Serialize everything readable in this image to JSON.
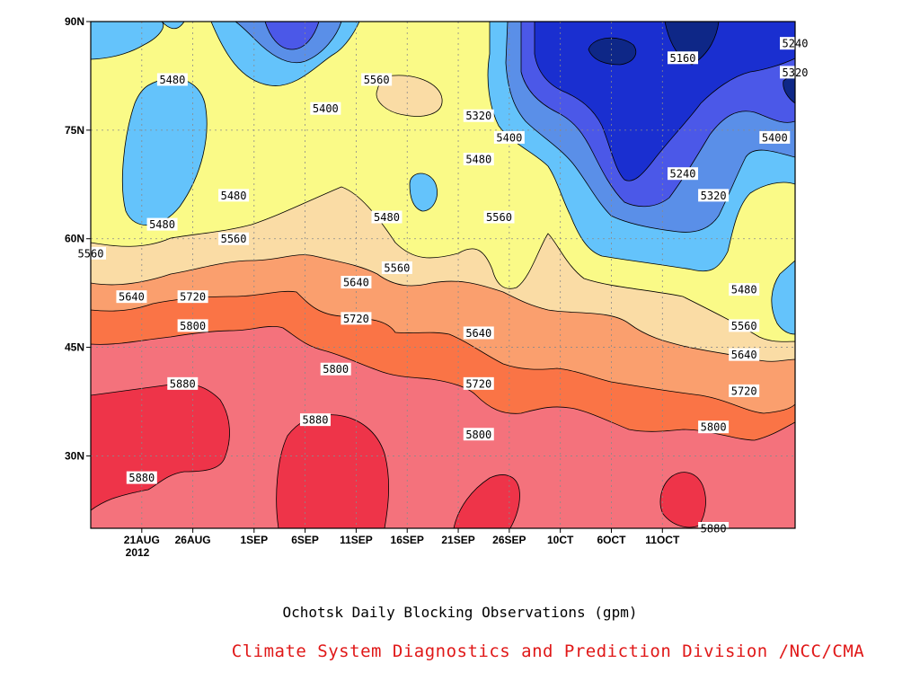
{
  "chart_data": {
    "type": "heatmap",
    "subtype": "filled-contour",
    "title": "Ochotsk Daily Blocking Observations (gpm)",
    "variable_unit": "gpm",
    "y_axis": {
      "range": [
        "20N",
        "90N"
      ],
      "tick_labels": [
        "90N",
        "75N",
        "60N",
        "45N",
        "30N"
      ],
      "tick_values": [
        90,
        75,
        60,
        45,
        30
      ]
    },
    "x_axis": {
      "tick_labels": [
        "21AUG",
        "26AUG",
        "1SEP",
        "6SEP",
        "11SEP",
        "16SEP",
        "21SEP",
        "26SEP",
        "1OCT",
        "6OCT",
        "11OCT"
      ],
      "displayed_tick_labels": [
        "21AUG",
        "26AUG",
        "1SEP",
        "6SEP",
        "11SEP",
        "16SEP",
        "21SEP",
        "26SEP",
        "10CT",
        "6OCT",
        "11OCT"
      ],
      "year_label": "2012"
    },
    "grid": true,
    "contour_levels": [
      5160,
      5240,
      5320,
      5400,
      5480,
      5560,
      5640,
      5720,
      5800,
      5880
    ],
    "fill_colors": {
      "below_5160": "#0e2787",
      "5160_5240": "#1a2fd0",
      "5240_5320": "#4b58e8",
      "5320_5400": "#5a8fe8",
      "5400_5480": "#64c3fb",
      "5480_5560": "#fafa87",
      "5560_5640": "#fadca5",
      "5640_5720": "#fa9f6e",
      "5720_5800": "#fa7446",
      "5800_5880": "#f4727c",
      "above_5880": "#ee3449"
    },
    "contour_labels": [
      {
        "text": "5480",
        "date": "24AUG",
        "lat": 82
      },
      {
        "text": "5560",
        "date": "13SEP",
        "lat": 82
      },
      {
        "text": "5400",
        "date": "8SEP",
        "lat": 78
      },
      {
        "text": "5160",
        "date": "13OCT",
        "lat": 85
      },
      {
        "text": "5240",
        "date": "24OCT",
        "lat": 87
      },
      {
        "text": "5320",
        "date": "24OCT",
        "lat": 83
      },
      {
        "text": "5320",
        "date": "23SEP",
        "lat": 77
      },
      {
        "text": "5400",
        "date": "26SEP",
        "lat": 74
      },
      {
        "text": "5400",
        "date": "22OCT",
        "lat": 74
      },
      {
        "text": "5480",
        "date": "23SEP",
        "lat": 71
      },
      {
        "text": "5240",
        "date": "13OCT",
        "lat": 69
      },
      {
        "text": "5480",
        "date": "30AUG",
        "lat": 66
      },
      {
        "text": "5480",
        "date": "14SEP",
        "lat": 63
      },
      {
        "text": "5320",
        "date": "16OCT",
        "lat": 66
      },
      {
        "text": "5480",
        "date": "23AUG",
        "lat": 62
      },
      {
        "text": "5560",
        "date": "25SEP",
        "lat": 63
      },
      {
        "text": "5560",
        "date": "16AUG",
        "lat": 58
      },
      {
        "text": "5560",
        "date": "30AUG",
        "lat": 60
      },
      {
        "text": "5560",
        "date": "15SEP",
        "lat": 56
      },
      {
        "text": "5480",
        "date": "19OCT",
        "lat": 53
      },
      {
        "text": "5640",
        "date": "11SEP",
        "lat": 54
      },
      {
        "text": "5640",
        "date": "20AUG",
        "lat": 52
      },
      {
        "text": "5720",
        "date": "26AUG",
        "lat": 52
      },
      {
        "text": "5720",
        "date": "11SEP",
        "lat": 49
      },
      {
        "text": "5640",
        "date": "23SEP",
        "lat": 47
      },
      {
        "text": "5560",
        "date": "19OCT",
        "lat": 48
      },
      {
        "text": "5800",
        "date": "26AUG",
        "lat": 48
      },
      {
        "text": "5640",
        "date": "19OCT",
        "lat": 44
      },
      {
        "text": "5800",
        "date": "9SEP",
        "lat": 42
      },
      {
        "text": "5720",
        "date": "23SEP",
        "lat": 40
      },
      {
        "text": "5720",
        "date": "19OCT",
        "lat": 39
      },
      {
        "text": "5880",
        "date": "25AUG",
        "lat": 40
      },
      {
        "text": "5880",
        "date": "7SEP",
        "lat": 35
      },
      {
        "text": "5800",
        "date": "23SEP",
        "lat": 33
      },
      {
        "text": "5800",
        "date": "16OCT",
        "lat": 34
      },
      {
        "text": "5880",
        "date": "21AUG",
        "lat": 27
      },
      {
        "text": "5880",
        "date": "16OCT",
        "lat": 20
      }
    ]
  },
  "caption": {
    "title": "Ochotsk Daily Blocking Observations (gpm)",
    "credit": "Climate System Diagnostics and Prediction Division /NCC/CMA"
  }
}
